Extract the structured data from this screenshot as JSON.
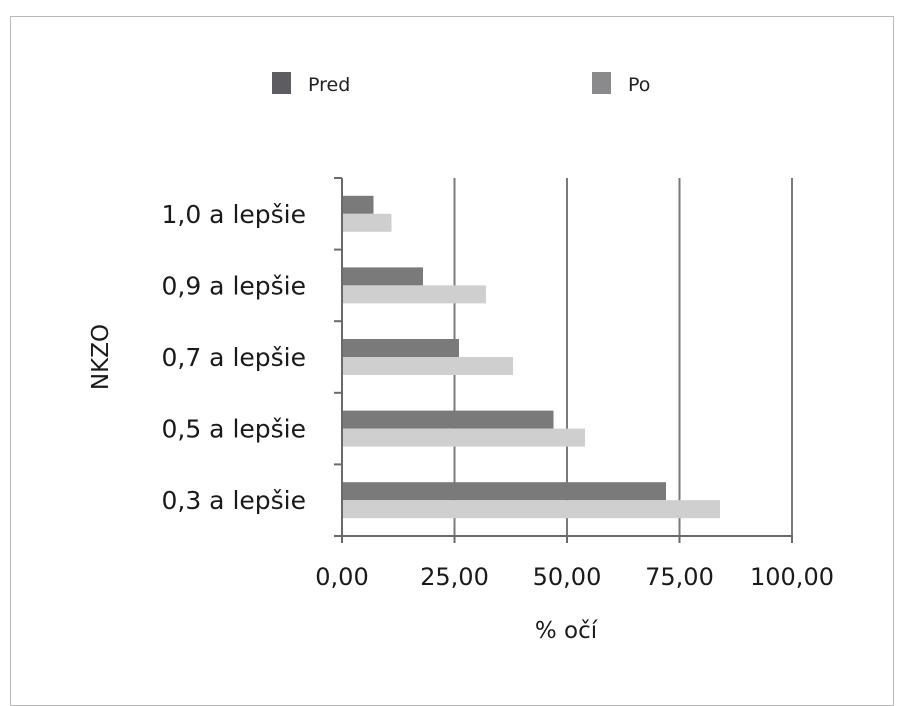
{
  "chart_data": {
    "type": "bar",
    "orientation": "horizontal",
    "categories": [
      "1,0 a lepšie",
      "0,9 a lepšie",
      "0,7 a lepšie",
      "0,5 a lepšie",
      "0,3 a lepšie"
    ],
    "series": [
      {
        "name": "Pred",
        "values": [
          7,
          18,
          26,
          47,
          72
        ],
        "color": "#7a7a7a"
      },
      {
        "name": "Po",
        "values": [
          11,
          32,
          38,
          54,
          84
        ],
        "color": "#cfcfcf"
      }
    ],
    "xlabel": "% očí",
    "ylabel": "NKZO",
    "xlim": [
      0,
      100
    ],
    "xticks": [
      0,
      25,
      50,
      75,
      100
    ],
    "xtick_labels": [
      "0,00",
      "25,00",
      "50,00",
      "75,00",
      "100,00"
    ],
    "grid": true,
    "legend_position": "top",
    "legend_colors": {
      "Pred": "#5d5d61",
      "Po": "#8a8a8d"
    }
  }
}
